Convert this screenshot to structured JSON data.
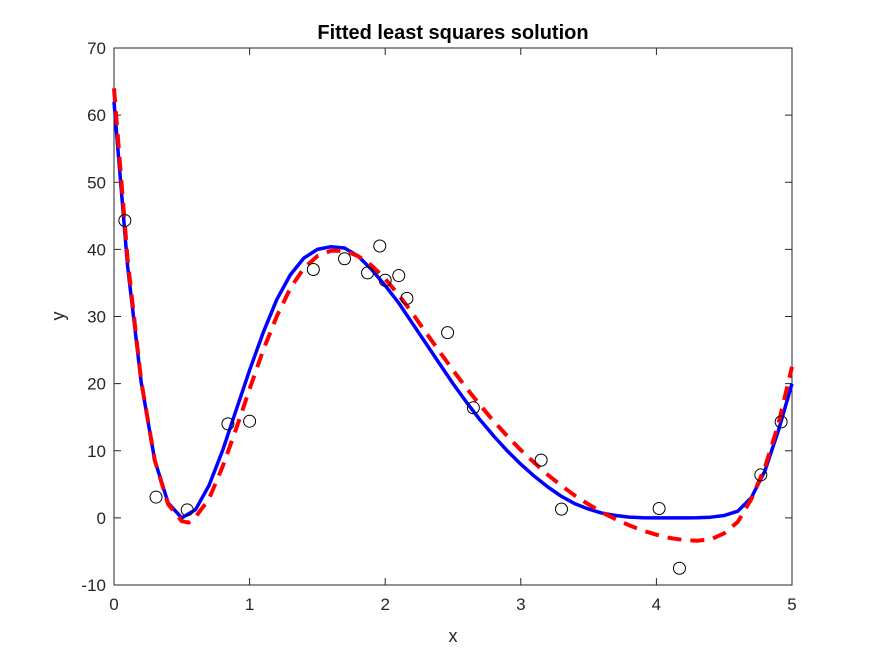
{
  "chart_data": {
    "type": "scatter",
    "title": "Fitted least squares solution",
    "xlabel": "x",
    "ylabel": "y",
    "xlim": [
      0,
      5
    ],
    "ylim": [
      -10,
      70
    ],
    "xticks": [
      0,
      1,
      2,
      3,
      4,
      5
    ],
    "yticks": [
      -10,
      0,
      10,
      20,
      30,
      40,
      50,
      60,
      70
    ],
    "grid": false,
    "legend": "none",
    "points": [
      {
        "x": 0.08,
        "y": 44.3
      },
      {
        "x": 0.31,
        "y": 3.1
      },
      {
        "x": 0.54,
        "y": 1.2
      },
      {
        "x": 0.84,
        "y": 14.0
      },
      {
        "x": 1.0,
        "y": 14.4
      },
      {
        "x": 1.47,
        "y": 37.0
      },
      {
        "x": 1.7,
        "y": 38.6
      },
      {
        "x": 1.87,
        "y": 36.5
      },
      {
        "x": 1.96,
        "y": 40.5
      },
      {
        "x": 2.0,
        "y": 35.4
      },
      {
        "x": 2.1,
        "y": 36.1
      },
      {
        "x": 2.16,
        "y": 32.7
      },
      {
        "x": 2.46,
        "y": 27.6
      },
      {
        "x": 2.65,
        "y": 16.4
      },
      {
        "x": 3.15,
        "y": 8.6
      },
      {
        "x": 3.3,
        "y": 1.3
      },
      {
        "x": 4.02,
        "y": 1.4
      },
      {
        "x": 4.17,
        "y": -7.5
      },
      {
        "x": 4.77,
        "y": 6.4
      },
      {
        "x": 4.92,
        "y": 14.3
      }
    ],
    "series": [
      {
        "style": "solid",
        "color": "#0000ff",
        "points": [
          [
            0,
            62
          ],
          [
            0.1,
            37.5
          ],
          [
            0.2,
            20.3
          ],
          [
            0.3,
            8.6
          ],
          [
            0.4,
            2.2
          ],
          [
            0.5,
            0
          ],
          [
            0.6,
            1.2
          ],
          [
            0.7,
            4.8
          ],
          [
            0.8,
            10.0
          ],
          [
            0.9,
            16.0
          ],
          [
            1.0,
            22.0
          ],
          [
            1.1,
            27.6
          ],
          [
            1.2,
            32.5
          ],
          [
            1.3,
            36.2
          ],
          [
            1.4,
            38.7
          ],
          [
            1.5,
            40.0
          ],
          [
            1.6,
            40.4
          ],
          [
            1.7,
            40.2
          ],
          [
            1.8,
            39.0
          ],
          [
            1.9,
            37.0
          ],
          [
            2.0,
            34.6
          ],
          [
            2.1,
            32.0
          ],
          [
            2.2,
            29.0
          ],
          [
            2.3,
            26.0
          ],
          [
            2.4,
            23.0
          ],
          [
            2.5,
            20.0
          ],
          [
            2.6,
            17.2
          ],
          [
            2.7,
            14.6
          ],
          [
            2.8,
            12.2
          ],
          [
            2.9,
            10.0
          ],
          [
            3.0,
            8.0
          ],
          [
            3.1,
            6.2
          ],
          [
            3.2,
            4.6
          ],
          [
            3.3,
            3.2
          ],
          [
            3.4,
            2.1
          ],
          [
            3.5,
            1.3
          ],
          [
            3.6,
            0.7
          ],
          [
            3.7,
            0.35
          ],
          [
            3.8,
            0.12
          ],
          [
            3.9,
            0.03
          ],
          [
            4.0,
            0
          ],
          [
            4.1,
            0
          ],
          [
            4.2,
            0
          ],
          [
            4.3,
            0.02
          ],
          [
            4.4,
            0.1
          ],
          [
            4.5,
            0.35
          ],
          [
            4.6,
            1.0
          ],
          [
            4.7,
            3.0
          ],
          [
            4.8,
            7.0
          ],
          [
            4.9,
            13.0
          ],
          [
            5.0,
            20.0
          ]
        ]
      },
      {
        "style": "dashed",
        "color": "#ff0000",
        "points": [
          [
            0,
            64
          ],
          [
            0.1,
            38.5
          ],
          [
            0.2,
            20.5
          ],
          [
            0.3,
            8.6
          ],
          [
            0.4,
            2.0
          ],
          [
            0.5,
            -0.5
          ],
          [
            0.55,
            -0.7
          ],
          [
            0.6,
            0.1
          ],
          [
            0.7,
            2.8
          ],
          [
            0.8,
            7.6
          ],
          [
            0.9,
            13.2
          ],
          [
            1.0,
            19.2
          ],
          [
            1.1,
            25.0
          ],
          [
            1.2,
            30.0
          ],
          [
            1.3,
            34.2
          ],
          [
            1.4,
            37.2
          ],
          [
            1.5,
            39.0
          ],
          [
            1.6,
            39.8
          ],
          [
            1.7,
            39.8
          ],
          [
            1.8,
            39.0
          ],
          [
            1.9,
            37.6
          ],
          [
            2.0,
            35.6
          ],
          [
            2.1,
            33.2
          ],
          [
            2.2,
            30.5
          ],
          [
            2.3,
            27.6
          ],
          [
            2.4,
            24.8
          ],
          [
            2.5,
            22.0
          ],
          [
            2.6,
            19.3
          ],
          [
            2.7,
            16.8
          ],
          [
            2.8,
            14.4
          ],
          [
            2.9,
            12.2
          ],
          [
            3.0,
            10.1
          ],
          [
            3.1,
            8.2
          ],
          [
            3.2,
            6.4
          ],
          [
            3.3,
            4.8
          ],
          [
            3.4,
            3.3
          ],
          [
            3.5,
            2.0
          ],
          [
            3.6,
            0.8
          ],
          [
            3.7,
            -0.2
          ],
          [
            3.8,
            -1.1
          ],
          [
            3.9,
            -1.9
          ],
          [
            4.0,
            -2.5
          ],
          [
            4.1,
            -3.0
          ],
          [
            4.2,
            -3.3
          ],
          [
            4.3,
            -3.4
          ],
          [
            4.4,
            -3.2
          ],
          [
            4.5,
            -2.3
          ],
          [
            4.6,
            -0.6
          ],
          [
            4.7,
            2.8
          ],
          [
            4.8,
            7.5
          ],
          [
            4.9,
            14.0
          ],
          [
            5.0,
            22.5
          ]
        ]
      }
    ]
  }
}
